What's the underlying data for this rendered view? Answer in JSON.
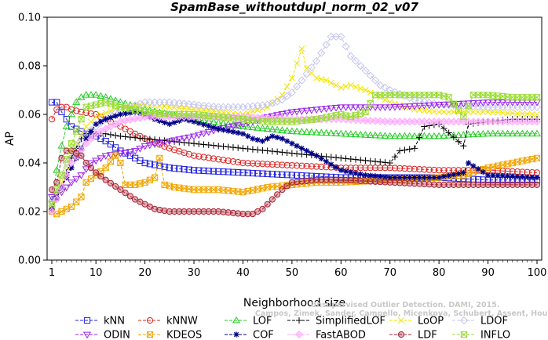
{
  "chart_data": {
    "type": "line",
    "title": "SpamBase_withoutdupl_norm_02_v07",
    "xlabel": "Neighborhood size",
    "ylabel": "AP",
    "xlim": [
      1,
      100
    ],
    "ylim": [
      0.0,
      0.1
    ],
    "xticks": [
      1,
      10,
      20,
      30,
      40,
      50,
      60,
      70,
      80,
      90,
      100
    ],
    "yticks": [
      0.0,
      0.02,
      0.04,
      0.06,
      0.08,
      0.1
    ],
    "ytick_labels": [
      "0.00",
      "0.02",
      "0.04",
      "0.06",
      "0.08",
      "0.10"
    ],
    "grid": false,
    "legend_position": "bottom",
    "watermark": [
      "Campos, Zimek, Sander, Campello, Micenkova, Schubert, Assent, Houle",
      "Unsupervised Outlier Detection. DAMI, 2015."
    ],
    "series": [
      {
        "name": "kNN",
        "color": "#2222dd",
        "marker": "square",
        "points": [
          [
            1,
            0.065
          ],
          [
            2,
            0.065
          ],
          [
            3,
            0.061
          ],
          [
            4,
            0.058
          ],
          [
            5,
            0.055
          ],
          [
            6,
            0.054
          ],
          [
            7,
            0.053
          ],
          [
            8,
            0.052
          ],
          [
            10,
            0.051
          ],
          [
            12,
            0.049
          ],
          [
            15,
            0.045
          ],
          [
            18,
            0.042
          ],
          [
            20,
            0.04
          ],
          [
            25,
            0.038
          ],
          [
            30,
            0.037
          ],
          [
            40,
            0.036
          ],
          [
            50,
            0.035
          ],
          [
            60,
            0.034
          ],
          [
            70,
            0.034
          ],
          [
            80,
            0.034
          ],
          [
            90,
            0.033
          ],
          [
            100,
            0.033
          ]
        ]
      },
      {
        "name": "kNNW",
        "color": "#dd2222",
        "marker": "circle",
        "points": [
          [
            1,
            0.058
          ],
          [
            2,
            0.062
          ],
          [
            3,
            0.063
          ],
          [
            4,
            0.063
          ],
          [
            5,
            0.062
          ],
          [
            7,
            0.061
          ],
          [
            10,
            0.06
          ],
          [
            12,
            0.058
          ],
          [
            15,
            0.055
          ],
          [
            18,
            0.052
          ],
          [
            20,
            0.05
          ],
          [
            25,
            0.046
          ],
          [
            30,
            0.043
          ],
          [
            40,
            0.04
          ],
          [
            50,
            0.039
          ],
          [
            60,
            0.038
          ],
          [
            70,
            0.038
          ],
          [
            80,
            0.037
          ],
          [
            90,
            0.037
          ],
          [
            100,
            0.036
          ]
        ]
      },
      {
        "name": "LOF",
        "color": "#22cc22",
        "marker": "triangle",
        "points": [
          [
            1,
            0.025
          ],
          [
            2,
            0.037
          ],
          [
            3,
            0.047
          ],
          [
            4,
            0.055
          ],
          [
            5,
            0.06
          ],
          [
            6,
            0.065
          ],
          [
            7,
            0.067
          ],
          [
            8,
            0.068
          ],
          [
            10,
            0.068
          ],
          [
            12,
            0.067
          ],
          [
            15,
            0.065
          ],
          [
            20,
            0.062
          ],
          [
            25,
            0.06
          ],
          [
            30,
            0.058
          ],
          [
            40,
            0.055
          ],
          [
            50,
            0.053
          ],
          [
            60,
            0.052
          ],
          [
            70,
            0.051
          ],
          [
            80,
            0.051
          ],
          [
            90,
            0.052
          ],
          [
            100,
            0.052
          ]
        ]
      },
      {
        "name": "SimplifiedLOF",
        "color": "#000000",
        "marker": "plus",
        "points": [
          [
            1,
            0.021
          ],
          [
            3,
            0.03
          ],
          [
            5,
            0.042
          ],
          [
            7,
            0.05
          ],
          [
            8,
            0.052
          ],
          [
            10,
            0.052
          ],
          [
            12,
            0.052
          ],
          [
            15,
            0.051
          ],
          [
            20,
            0.05
          ],
          [
            25,
            0.049
          ],
          [
            30,
            0.048
          ],
          [
            35,
            0.047
          ],
          [
            40,
            0.046
          ],
          [
            45,
            0.045
          ],
          [
            50,
            0.044
          ],
          [
            55,
            0.043
          ],
          [
            60,
            0.042
          ],
          [
            65,
            0.041
          ],
          [
            70,
            0.04
          ],
          [
            72,
            0.045
          ],
          [
            75,
            0.046
          ],
          [
            77,
            0.055
          ],
          [
            80,
            0.056
          ],
          [
            85,
            0.047
          ],
          [
            86,
            0.056
          ],
          [
            90,
            0.057
          ],
          [
            95,
            0.058
          ],
          [
            100,
            0.058
          ]
        ]
      },
      {
        "name": "LoOP",
        "color": "#f2e600",
        "marker": "x",
        "points": [
          [
            1,
            0.022
          ],
          [
            3,
            0.032
          ],
          [
            5,
            0.045
          ],
          [
            8,
            0.055
          ],
          [
            10,
            0.059
          ],
          [
            15,
            0.063
          ],
          [
            20,
            0.064
          ],
          [
            25,
            0.063
          ],
          [
            30,
            0.062
          ],
          [
            35,
            0.061
          ],
          [
            40,
            0.06
          ],
          [
            45,
            0.063
          ],
          [
            48,
            0.068
          ],
          [
            50,
            0.075
          ],
          [
            52,
            0.087
          ],
          [
            53,
            0.079
          ],
          [
            55,
            0.075
          ],
          [
            57,
            0.074
          ],
          [
            60,
            0.071
          ],
          [
            62,
            0.072
          ],
          [
            65,
            0.07
          ],
          [
            70,
            0.065
          ],
          [
            75,
            0.062
          ],
          [
            80,
            0.061
          ],
          [
            90,
            0.061
          ],
          [
            100,
            0.06
          ]
        ]
      },
      {
        "name": "LDOF",
        "color": "#c4c4ee",
        "marker": "diamond",
        "points": [
          [
            1,
            0.024
          ],
          [
            3,
            0.035
          ],
          [
            5,
            0.045
          ],
          [
            8,
            0.052
          ],
          [
            10,
            0.055
          ],
          [
            12,
            0.058
          ],
          [
            15,
            0.062
          ],
          [
            20,
            0.065
          ],
          [
            25,
            0.065
          ],
          [
            30,
            0.064
          ],
          [
            35,
            0.063
          ],
          [
            40,
            0.063
          ],
          [
            45,
            0.064
          ],
          [
            48,
            0.066
          ],
          [
            50,
            0.069
          ],
          [
            52,
            0.074
          ],
          [
            55,
            0.082
          ],
          [
            58,
            0.092
          ],
          [
            60,
            0.092
          ],
          [
            62,
            0.084
          ],
          [
            64,
            0.08
          ],
          [
            66,
            0.076
          ],
          [
            68,
            0.072
          ],
          [
            70,
            0.07
          ],
          [
            75,
            0.066
          ],
          [
            80,
            0.064
          ],
          [
            90,
            0.063
          ],
          [
            100,
            0.063
          ]
        ]
      },
      {
        "name": "ODIN",
        "color": "#9922ee",
        "marker": "triangle-down",
        "points": [
          [
            1,
            0.026
          ],
          [
            3,
            0.028
          ],
          [
            5,
            0.032
          ],
          [
            7,
            0.035
          ],
          [
            9,
            0.04
          ],
          [
            12,
            0.043
          ],
          [
            15,
            0.044
          ],
          [
            18,
            0.045
          ],
          [
            20,
            0.047
          ],
          [
            25,
            0.049
          ],
          [
            30,
            0.051
          ],
          [
            35,
            0.054
          ],
          [
            40,
            0.056
          ],
          [
            45,
            0.059
          ],
          [
            50,
            0.061
          ],
          [
            55,
            0.062
          ],
          [
            60,
            0.063
          ],
          [
            70,
            0.063
          ],
          [
            80,
            0.064
          ],
          [
            90,
            0.065
          ],
          [
            100,
            0.065
          ]
        ]
      },
      {
        "name": "KDEOS",
        "color": "#f2a500",
        "marker": "square-x",
        "points": [
          [
            1,
            0.02
          ],
          [
            2,
            0.019
          ],
          [
            3,
            0.02
          ],
          [
            5,
            0.022
          ],
          [
            7,
            0.026
          ],
          [
            8,
            0.032
          ],
          [
            10,
            0.035
          ],
          [
            12,
            0.038
          ],
          [
            14,
            0.043
          ],
          [
            15,
            0.04
          ],
          [
            16,
            0.031
          ],
          [
            18,
            0.031
          ],
          [
            20,
            0.032
          ],
          [
            22,
            0.034
          ],
          [
            23,
            0.042
          ],
          [
            24,
            0.031
          ],
          [
            26,
            0.03
          ],
          [
            30,
            0.029
          ],
          [
            35,
            0.029
          ],
          [
            40,
            0.028
          ],
          [
            45,
            0.03
          ],
          [
            50,
            0.031
          ],
          [
            55,
            0.032
          ],
          [
            60,
            0.032
          ],
          [
            70,
            0.033
          ],
          [
            80,
            0.034
          ],
          [
            85,
            0.035
          ],
          [
            90,
            0.038
          ],
          [
            95,
            0.04
          ],
          [
            100,
            0.042
          ]
        ]
      },
      {
        "name": "COF",
        "color": "#000088",
        "marker": "asterisk",
        "points": [
          [
            1,
            0.021
          ],
          [
            3,
            0.03
          ],
          [
            5,
            0.038
          ],
          [
            8,
            0.05
          ],
          [
            10,
            0.056
          ],
          [
            12,
            0.058
          ],
          [
            15,
            0.06
          ],
          [
            18,
            0.061
          ],
          [
            20,
            0.06
          ],
          [
            22,
            0.058
          ],
          [
            25,
            0.056
          ],
          [
            28,
            0.058
          ],
          [
            30,
            0.057
          ],
          [
            35,
            0.054
          ],
          [
            40,
            0.052
          ],
          [
            42,
            0.05
          ],
          [
            44,
            0.049
          ],
          [
            46,
            0.051
          ],
          [
            48,
            0.05
          ],
          [
            50,
            0.048
          ],
          [
            55,
            0.043
          ],
          [
            60,
            0.037
          ],
          [
            65,
            0.035
          ],
          [
            70,
            0.034
          ],
          [
            80,
            0.034
          ],
          [
            85,
            0.036
          ],
          [
            86,
            0.04
          ],
          [
            90,
            0.035
          ],
          [
            100,
            0.034
          ]
        ]
      },
      {
        "name": "FastABOD",
        "color": "#ffaaff",
        "marker": "diamond-filled",
        "points": [
          [
            1,
            0.02
          ],
          [
            3,
            0.03
          ],
          [
            5,
            0.04
          ],
          [
            8,
            0.048
          ],
          [
            10,
            0.052
          ],
          [
            15,
            0.057
          ],
          [
            20,
            0.059
          ],
          [
            25,
            0.059
          ],
          [
            30,
            0.059
          ],
          [
            40,
            0.059
          ],
          [
            50,
            0.058
          ],
          [
            60,
            0.058
          ],
          [
            70,
            0.057
          ],
          [
            80,
            0.057
          ],
          [
            90,
            0.057
          ],
          [
            100,
            0.057
          ]
        ]
      },
      {
        "name": "LDF",
        "color": "#aa2233",
        "marker": "circle-filled",
        "points": [
          [
            1,
            0.029
          ],
          [
            2,
            0.032
          ],
          [
            3,
            0.042
          ],
          [
            4,
            0.045
          ],
          [
            5,
            0.045
          ],
          [
            7,
            0.043
          ],
          [
            8,
            0.04
          ],
          [
            10,
            0.036
          ],
          [
            12,
            0.033
          ],
          [
            15,
            0.029
          ],
          [
            18,
            0.025
          ],
          [
            20,
            0.023
          ],
          [
            22,
            0.021
          ],
          [
            25,
            0.02
          ],
          [
            30,
            0.02
          ],
          [
            35,
            0.02
          ],
          [
            40,
            0.019
          ],
          [
            42,
            0.019
          ],
          [
            44,
            0.021
          ],
          [
            46,
            0.025
          ],
          [
            48,
            0.029
          ],
          [
            50,
            0.032
          ],
          [
            55,
            0.033
          ],
          [
            60,
            0.033
          ],
          [
            70,
            0.032
          ],
          [
            80,
            0.031
          ],
          [
            90,
            0.031
          ],
          [
            100,
            0.031
          ]
        ]
      },
      {
        "name": "INFLO",
        "color": "#99dd33",
        "marker": "hourglass",
        "points": [
          [
            1,
            0.023
          ],
          [
            3,
            0.035
          ],
          [
            5,
            0.048
          ],
          [
            7,
            0.058
          ],
          [
            8,
            0.063
          ],
          [
            10,
            0.064
          ],
          [
            12,
            0.065
          ],
          [
            15,
            0.063
          ],
          [
            20,
            0.061
          ],
          [
            25,
            0.06
          ],
          [
            30,
            0.06
          ],
          [
            35,
            0.059
          ],
          [
            40,
            0.058
          ],
          [
            45,
            0.057
          ],
          [
            50,
            0.057
          ],
          [
            55,
            0.058
          ],
          [
            60,
            0.06
          ],
          [
            62,
            0.059
          ],
          [
            65,
            0.061
          ],
          [
            67,
            0.068
          ],
          [
            70,
            0.068
          ],
          [
            75,
            0.068
          ],
          [
            80,
            0.068
          ],
          [
            82,
            0.067
          ],
          [
            85,
            0.059
          ],
          [
            87,
            0.068
          ],
          [
            90,
            0.068
          ],
          [
            95,
            0.067
          ],
          [
            100,
            0.067
          ]
        ]
      }
    ]
  }
}
